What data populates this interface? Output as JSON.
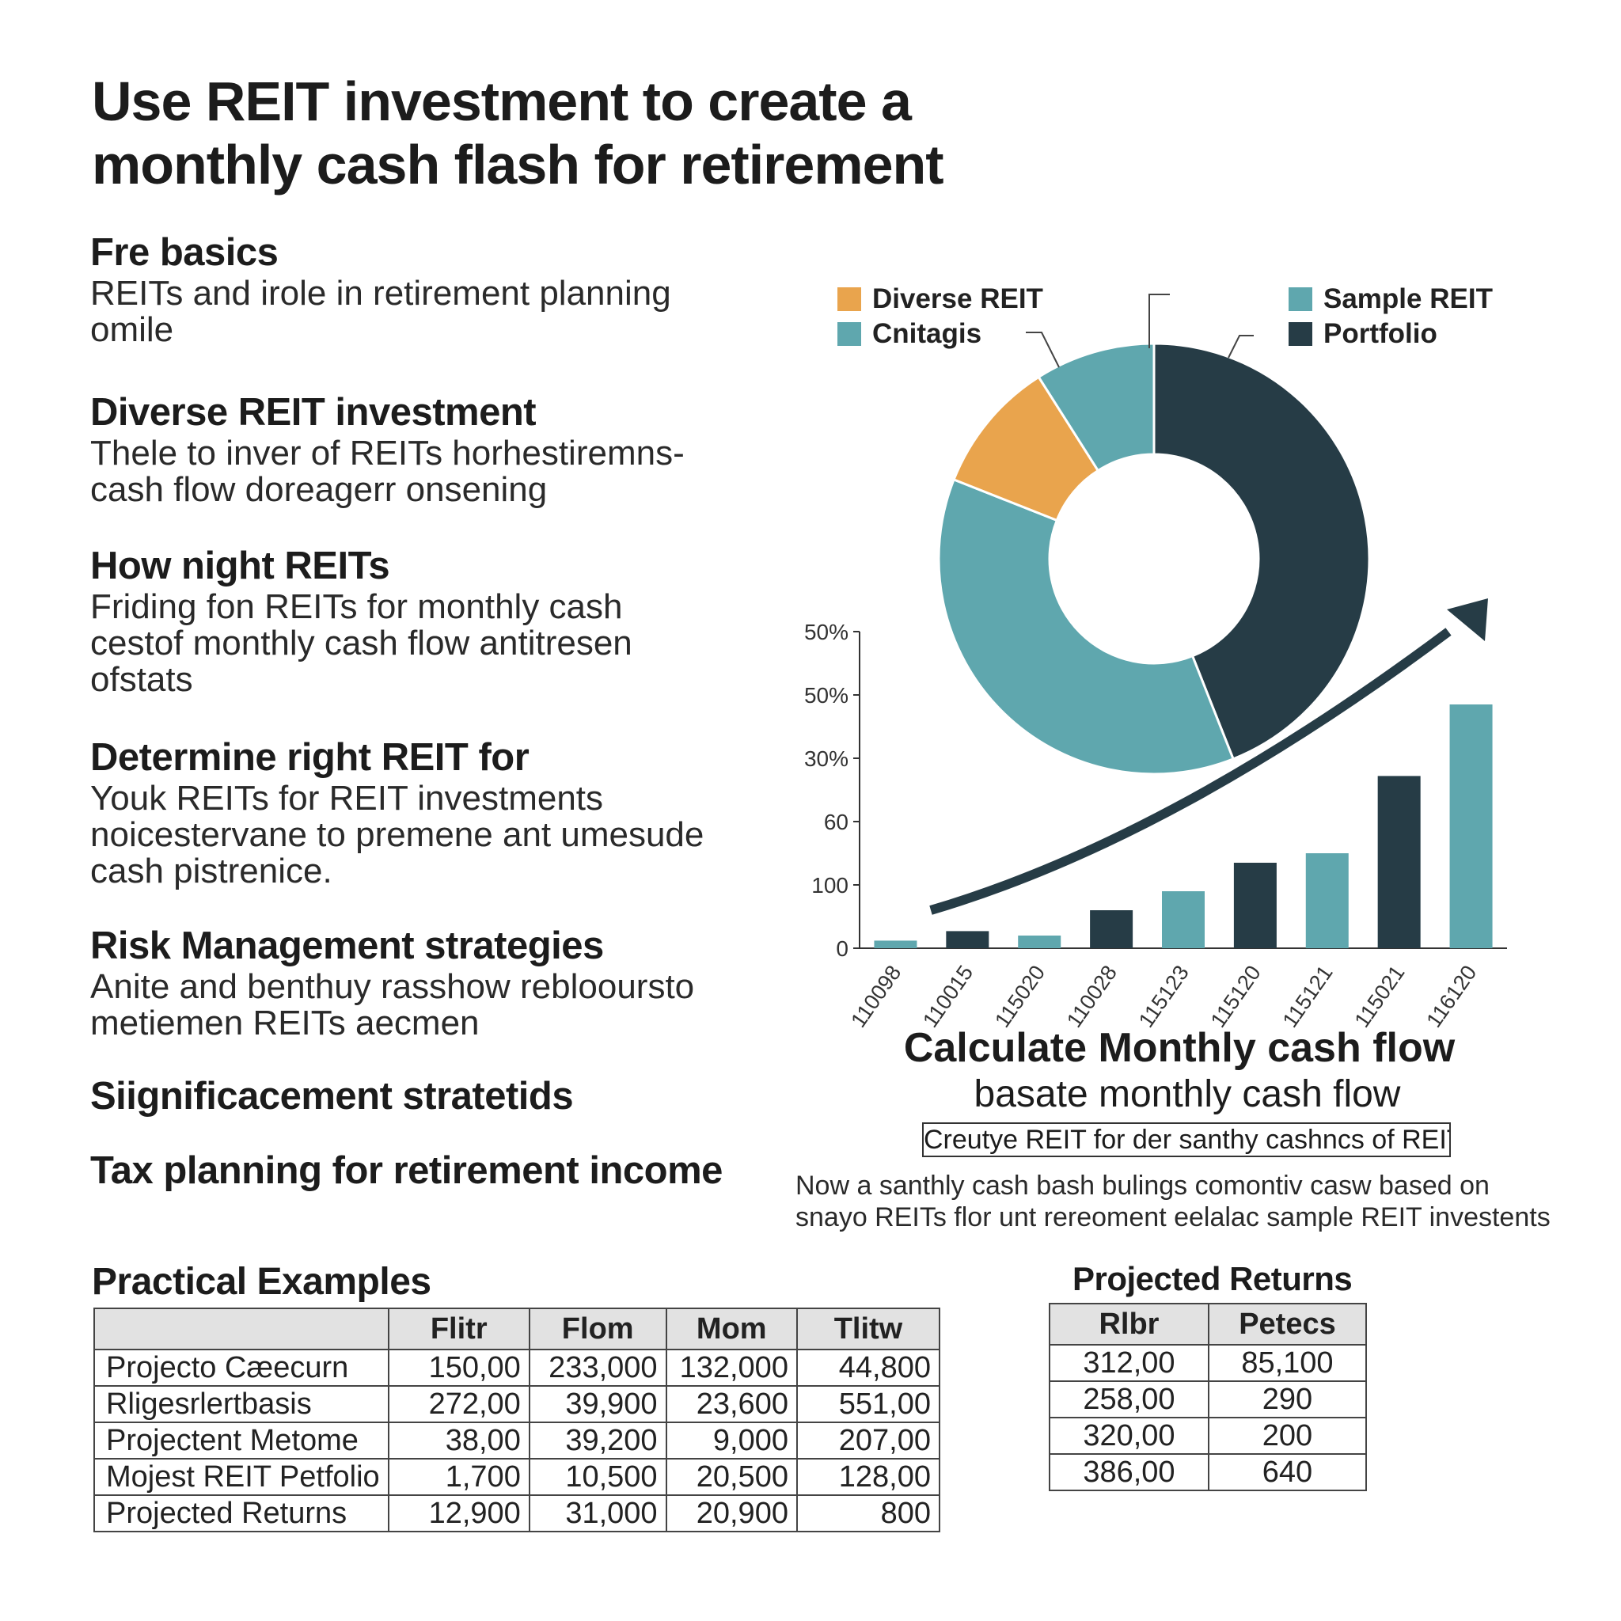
{
  "title": {
    "line1": "Use REIT investment to create a",
    "line2": "monthly cash flash for retirement"
  },
  "sections": [
    {
      "heading": "Fre basics",
      "body": "REITs and irole in retirement planning\nomile"
    },
    {
      "heading": "Diverse REIT investment",
      "body": "Thele to inver of REITs horhestiremns-\ncash flow doreagerr onsening"
    },
    {
      "heading": "How night REITs",
      "body": "Friding fon REITs for monthly cash\ncestof monthly cash flow antitresen\nofstats"
    },
    {
      "heading": "Determine right REIT for",
      "body": "Youk REITs for REIT investments\nnoicestervane to premene ant umesude\ncash pistrenice."
    },
    {
      "heading": "Risk Management strategies",
      "body": "Anite and benthuy rasshow reblooursto\nmetiemen REITs aecmen"
    },
    {
      "heading": "Siignificacement stratetids",
      "body": ""
    },
    {
      "heading": "Tax planning for retirement income",
      "body": ""
    }
  ],
  "colors": {
    "orange": "#E9A44D",
    "teal": "#5FA7AE",
    "dark": "#263C46"
  },
  "chart_data": [
    {
      "type": "pie",
      "style": "donut",
      "legend": [
        {
          "label": "Diverse REIT",
          "color": "#E9A44D"
        },
        {
          "label": "Cnitagis",
          "color": "#5FA7AE"
        },
        {
          "label": "Sample REIT",
          "color": "#5FA7AE"
        },
        {
          "label": "Portfolio",
          "color": "#263C46"
        }
      ],
      "slices": [
        {
          "name": "Portfolio",
          "value": 44,
          "color": "#263C46"
        },
        {
          "name": "Sample REIT",
          "value": 37,
          "color": "#5FA7AE"
        },
        {
          "name": "Diverse REIT",
          "value": 10,
          "color": "#E9A44D"
        },
        {
          "name": "Cnitagis",
          "value": 9,
          "color": "#5FA7AE"
        }
      ]
    },
    {
      "type": "bar",
      "categories": [
        "110098",
        "110015",
        "115020",
        "110028",
        "115123",
        "115120",
        "115121",
        "115021",
        "116120"
      ],
      "values": [
        12,
        27,
        20,
        60,
        90,
        135,
        150,
        272,
        385
      ],
      "colors": [
        "#5FA7AE",
        "#263C46",
        "#5FA7AE",
        "#263C46",
        "#5FA7AE",
        "#263C46",
        "#5FA7AE",
        "#263C46",
        "#5FA7AE"
      ],
      "y_tick_labels": [
        "0",
        "100",
        "60",
        "30%",
        "50%",
        "50%"
      ],
      "ylim": [
        0,
        500
      ],
      "trend": "upward arrow"
    }
  ],
  "calc": {
    "title": "Calculate Monthly cash flow",
    "subtitle": "basate monthly cash flow",
    "box": "Creutye REIT for der santhy cashncs of REIT",
    "note_line1": "Now a santhly cash bash bulings comontiv casw based on",
    "note_line2": "snayo REITs flor unt rereoment eelalac sample REIT investents"
  },
  "examples": {
    "title": "Practical Examples",
    "headers": [
      "",
      "Flitr",
      "Flom",
      "Mom",
      "Tlitw"
    ],
    "rows": [
      [
        "Projecto Cæecurn",
        "150,00",
        "233,000",
        "132,000",
        "44,800"
      ],
      [
        "Rligesrlertbasis",
        "272,00",
        "39,900",
        "23,600",
        "551,00"
      ],
      [
        "Projectent Metome",
        "38,00",
        "39,200",
        "9,000",
        "207,00"
      ],
      [
        "Mojest REIT Petfolio",
        "1,700",
        "10,500",
        "20,500",
        "128,00"
      ],
      [
        "Projected Returns",
        "12,900",
        "31,000",
        "20,900",
        "800"
      ]
    ]
  },
  "returns": {
    "title": "Projected Returns",
    "headers": [
      "Rlbr",
      "Petecs"
    ],
    "rows": [
      [
        "312,00",
        "85,100"
      ],
      [
        "258,00",
        "290"
      ],
      [
        "320,00",
        "200"
      ],
      [
        "386,00",
        "640"
      ]
    ]
  }
}
